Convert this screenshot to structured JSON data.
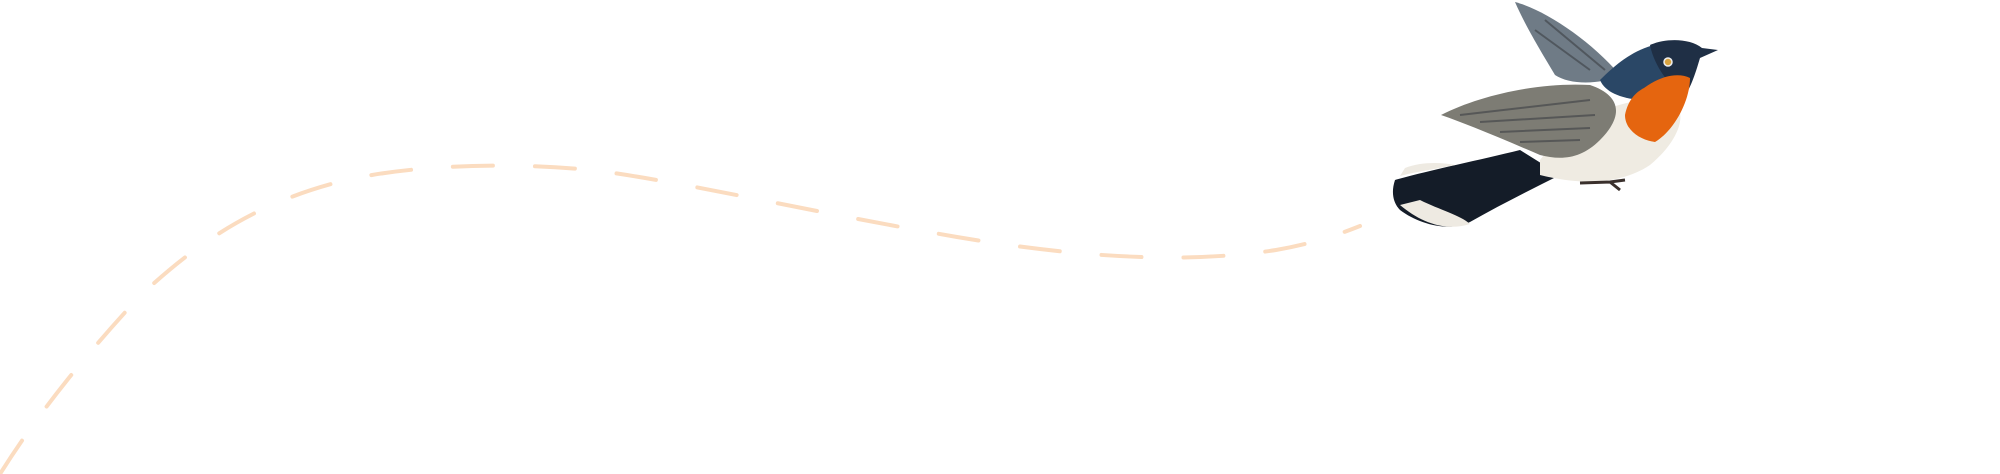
{
  "illustration": {
    "subject": "bird-in-flight",
    "colors": {
      "background": "#ffffff",
      "flight_path": "#fbdcc0",
      "bird_throat": "#e5650f",
      "bird_head": "#1f2f45",
      "bird_back": "#2a4766",
      "bird_wing": "#7d7c74",
      "bird_belly": "#efebe2",
      "bird_tail": "#141c28"
    }
  }
}
